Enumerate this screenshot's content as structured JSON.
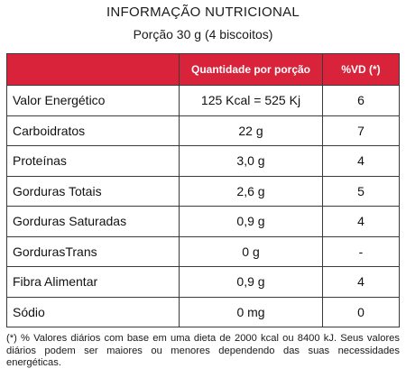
{
  "header": {
    "title": "INFORMAÇÃO  NUTRICIONAL",
    "subtitle": "Porção 30 g (4 biscoitos)"
  },
  "table": {
    "columns": [
      "",
      "Quantidade por porção",
      "%VD (*)"
    ],
    "rows": [
      {
        "name": "Valor Energético",
        "qty": "125 Kcal = 525 Kj",
        "vd": "6"
      },
      {
        "name": "Carboidratos",
        "qty": "22 g",
        "vd": "7"
      },
      {
        "name": "Proteínas",
        "qty": "3,0 g",
        "vd": "4"
      },
      {
        "name": "Gorduras Totais",
        "qty": "2,6 g",
        "vd": "5"
      },
      {
        "name": "Gorduras Saturadas",
        "qty": "0,9 g",
        "vd": "4"
      },
      {
        "name": "GordurasTrans",
        "qty": "0 g",
        "vd": "-"
      },
      {
        "name": "Fibra Alimentar",
        "qty": "0,9 g",
        "vd": "4"
      },
      {
        "name": "Sódio",
        "qty": "0 mg",
        "vd": "0"
      }
    ]
  },
  "footnote": "(*) % Valores diários com base em uma dieta de 2000 kcal ou 8400 kJ. Seus valores diários podem ser maiores ou menores dependendo das suas necessidades energéticas.",
  "colors": {
    "header_red": "#d8233a",
    "border": "#3a3a3a"
  }
}
